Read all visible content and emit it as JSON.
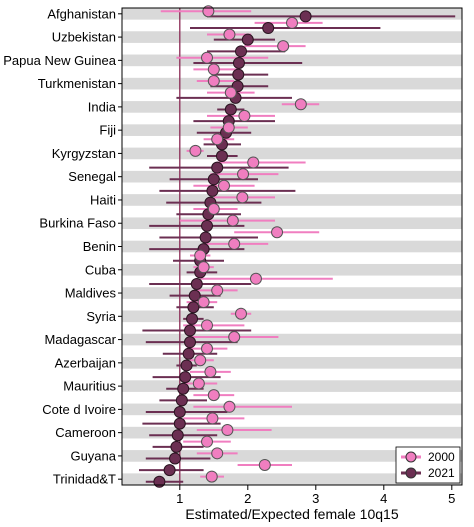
{
  "chart_data": {
    "type": "dot-interval",
    "xlabel": "Estimated/Expected female 10q15",
    "xlim": [
      0.15,
      5.15
    ],
    "x_ticks": [
      1,
      2,
      3,
      4,
      5
    ],
    "reference_line": 1,
    "grid": "alternating-row-bands",
    "legend": {
      "position": "bottom-right",
      "entries": [
        "2000",
        "2021"
      ]
    },
    "colors": {
      "2000": "#f07ec0",
      "2021": "#6b2f52",
      "band": "#d9d9d9",
      "refline": "#8b2a55"
    },
    "rows": [
      {
        "label": "Afghanistan",
        "y2000": 1.42,
        "lo2000": 0.72,
        "hi2000": 2.05,
        "y2021": 2.85,
        "lo2021": 1.4,
        "hi2021": 5.05
      },
      {
        "label": "",
        "y2000": 2.65,
        "lo2000": 2.1,
        "hi2000": 3.1,
        "y2021": 2.3,
        "lo2021": 1.15,
        "hi2021": 3.95
      },
      {
        "label": "Uzbekistan",
        "y2000": 1.73,
        "lo2000": 1.4,
        "hi2000": 2.05,
        "y2021": 2.0,
        "lo2021": 1.5,
        "hi2021": 2.4
      },
      {
        "label": "",
        "y2000": 2.52,
        "lo2000": 1.95,
        "hi2000": 2.85,
        "y2021": 1.9,
        "lo2021": 1.4,
        "hi2021": 2.55
      },
      {
        "label": "Papua New Guinea",
        "y2000": 1.4,
        "lo2000": 0.95,
        "hi2000": 2.3,
        "y2021": 1.87,
        "lo2021": 1.2,
        "hi2021": 2.8
      },
      {
        "label": "",
        "y2000": 1.5,
        "lo2000": 1.2,
        "hi2000": 1.85,
        "y2021": 1.86,
        "lo2021": 1.5,
        "hi2021": 2.3
      },
      {
        "label": "Turkmenistan",
        "y2000": 1.5,
        "lo2000": 1.25,
        "hi2000": 1.8,
        "y2021": 1.85,
        "lo2021": 1.45,
        "hi2021": 2.3
      },
      {
        "label": "",
        "y2000": 1.75,
        "lo2000": 1.4,
        "hi2000": 2.1,
        "y2021": 1.82,
        "lo2021": 0.95,
        "hi2021": 2.65
      },
      {
        "label": "India",
        "y2000": 2.78,
        "lo2000": 2.5,
        "hi2000": 3.05,
        "y2021": 1.75,
        "lo2021": 1.55,
        "hi2021": 1.95
      },
      {
        "label": "",
        "y2000": 1.95,
        "lo2000": 1.4,
        "hi2000": 2.4,
        "y2021": 1.72,
        "lo2021": 1.2,
        "hi2021": 2.4
      },
      {
        "label": "Fiji",
        "y2000": 1.72,
        "lo2000": 1.45,
        "hi2000": 2.0,
        "y2021": 1.68,
        "lo2021": 1.25,
        "hi2021": 2.05
      },
      {
        "label": "",
        "y2000": 1.55,
        "lo2000": 1.35,
        "hi2000": 1.8,
        "y2021": 1.62,
        "lo2021": 1.35,
        "hi2021": 1.9
      },
      {
        "label": "Kyrgyzstan",
        "y2000": 1.23,
        "lo2000": 1.1,
        "hi2000": 1.35,
        "y2021": 1.62,
        "lo2021": 1.4,
        "hi2021": 1.85
      },
      {
        "label": "",
        "y2000": 2.08,
        "lo2000": 1.55,
        "hi2000": 2.85,
        "y2021": 1.55,
        "lo2021": 0.55,
        "hi2021": 2.6
      },
      {
        "label": "Senegal",
        "y2000": 1.93,
        "lo2000": 1.45,
        "hi2000": 2.45,
        "y2021": 1.5,
        "lo2021": 0.85,
        "hi2021": 2.15
      },
      {
        "label": "",
        "y2000": 1.65,
        "lo2000": 1.2,
        "hi2000": 2.1,
        "y2021": 1.48,
        "lo2021": 0.7,
        "hi2021": 2.7
      },
      {
        "label": "Haiti",
        "y2000": 1.92,
        "lo2000": 1.5,
        "hi2000": 2.4,
        "y2021": 1.45,
        "lo2021": 0.8,
        "hi2021": 2.2
      },
      {
        "label": "",
        "y2000": 1.5,
        "lo2000": 1.2,
        "hi2000": 1.85,
        "y2021": 1.42,
        "lo2021": 0.95,
        "hi2021": 1.9
      },
      {
        "label": "Burkina Faso",
        "y2000": 1.78,
        "lo2000": 1.0,
        "hi2000": 2.4,
        "y2021": 1.4,
        "lo2021": 0.55,
        "hi2021": 1.95
      },
      {
        "label": "",
        "y2000": 2.43,
        "lo2000": 1.8,
        "hi2000": 3.05,
        "y2021": 1.38,
        "lo2021": 0.7,
        "hi2021": 2.15
      },
      {
        "label": "Benin",
        "y2000": 1.8,
        "lo2000": 1.35,
        "hi2000": 2.3,
        "y2021": 1.35,
        "lo2021": 0.55,
        "hi2021": 1.95
      },
      {
        "label": "",
        "y2000": 1.3,
        "lo2000": 1.15,
        "hi2000": 1.45,
        "y2021": 1.3,
        "lo2021": 0.9,
        "hi2021": 1.65
      },
      {
        "label": "Cuba",
        "y2000": 1.35,
        "lo2000": 1.2,
        "hi2000": 1.5,
        "y2021": 1.3,
        "lo2021": 1.1,
        "hi2021": 1.55
      },
      {
        "label": "",
        "y2000": 2.12,
        "lo2000": 1.3,
        "hi2000": 3.25,
        "y2021": 1.25,
        "lo2021": 0.55,
        "hi2021": 2.05
      },
      {
        "label": "Maldives",
        "y2000": 1.55,
        "lo2000": 1.25,
        "hi2000": 1.85,
        "y2021": 1.22,
        "lo2021": 0.85,
        "hi2021": 1.6
      },
      {
        "label": "",
        "y2000": 1.35,
        "lo2000": 1.1,
        "hi2000": 1.55,
        "y2021": 1.2,
        "lo2021": 0.95,
        "hi2021": 1.5
      },
      {
        "label": "Syria",
        "y2000": 1.9,
        "lo2000": 1.75,
        "hi2000": 2.05,
        "y2021": 1.18,
        "lo2021": 1.05,
        "hi2021": 1.35
      },
      {
        "label": "",
        "y2000": 1.4,
        "lo2000": 1.05,
        "hi2000": 1.95,
        "y2021": 1.15,
        "lo2021": 0.45,
        "hi2021": 2.05
      },
      {
        "label": "Madagascar",
        "y2000": 1.8,
        "lo2000": 1.15,
        "hi2000": 2.45,
        "y2021": 1.15,
        "lo2021": 0.5,
        "hi2021": 1.85
      },
      {
        "label": "",
        "y2000": 1.4,
        "lo2000": 1.1,
        "hi2000": 1.7,
        "y2021": 1.13,
        "lo2021": 0.75,
        "hi2021": 1.55
      },
      {
        "label": "Azerbaijan",
        "y2000": 1.3,
        "lo2000": 1.15,
        "hi2000": 1.5,
        "y2021": 1.1,
        "lo2021": 0.95,
        "hi2021": 1.25
      },
      {
        "label": "",
        "y2000": 1.45,
        "lo2000": 1.15,
        "hi2000": 1.75,
        "y2021": 1.08,
        "lo2021": 0.6,
        "hi2021": 1.6
      },
      {
        "label": "Mauritius",
        "y2000": 1.28,
        "lo2000": 1.05,
        "hi2000": 1.55,
        "y2021": 1.05,
        "lo2021": 0.8,
        "hi2021": 1.35
      },
      {
        "label": "",
        "y2000": 1.5,
        "lo2000": 1.2,
        "hi2000": 1.8,
        "y2021": 1.03,
        "lo2021": 0.7,
        "hi2021": 1.4
      },
      {
        "label": "Cote d Ivoire",
        "y2000": 1.73,
        "lo2000": 1.2,
        "hi2000": 2.65,
        "y2021": 1.0,
        "lo2021": 0.5,
        "hi2021": 1.7
      },
      {
        "label": "",
        "y2000": 1.48,
        "lo2000": 1.05,
        "hi2000": 1.95,
        "y2021": 1.0,
        "lo2021": 0.45,
        "hi2021": 1.6
      },
      {
        "label": "Cameroon",
        "y2000": 1.7,
        "lo2000": 1.25,
        "hi2000": 2.35,
        "y2021": 0.97,
        "lo2021": 0.55,
        "hi2021": 1.55
      },
      {
        "label": "",
        "y2000": 1.4,
        "lo2000": 1.05,
        "hi2000": 1.75,
        "y2021": 0.95,
        "lo2021": 0.6,
        "hi2021": 1.35
      },
      {
        "label": "Guyana",
        "y2000": 1.55,
        "lo2000": 1.25,
        "hi2000": 1.85,
        "y2021": 0.93,
        "lo2021": 0.5,
        "hi2021": 1.45
      },
      {
        "label": "",
        "y2000": 2.25,
        "lo2000": 1.85,
        "hi2000": 2.65,
        "y2021": 0.85,
        "lo2021": 0.4,
        "hi2021": 1.35
      },
      {
        "label": "Trinidad&T",
        "y2000": 1.47,
        "lo2000": 1.3,
        "hi2000": 1.65,
        "y2021": 0.7,
        "lo2021": 0.5,
        "hi2021": 1.05
      }
    ]
  }
}
